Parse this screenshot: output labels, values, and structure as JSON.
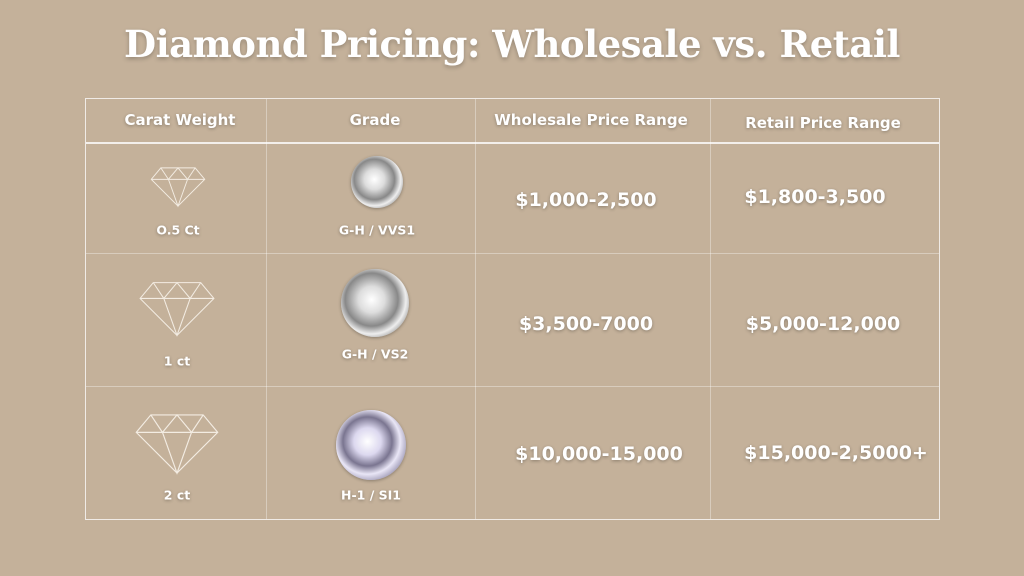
{
  "title": "Diamond Pricing: Wholesale vs. Retail",
  "headers": [
    "Carat Weight",
    "Grade",
    "Wholesale Price Range",
    "Retail Price Range"
  ],
  "rows": [
    {
      "carat": "O.5 Ct",
      "grade": "G-H / VVS1",
      "wholesale": "$1,000-2,500",
      "retail": "$1,800-3,500",
      "icon": "diamond-outline-icon"
    },
    {
      "carat": "1 ct",
      "grade": "G-H / VS2",
      "wholesale": "$3,500-7000",
      "retail": "$5,000-12,000",
      "icon": "diamond-outline-icon"
    },
    {
      "carat": "2 ct",
      "grade": "H-1 / SI1",
      "wholesale": "$10,000-15,000",
      "retail": "$15,000-2,5000+",
      "icon": "diamond-outline-icon"
    }
  ],
  "colors": {
    "background": "#c4b19a",
    "text": "#ffffff"
  }
}
